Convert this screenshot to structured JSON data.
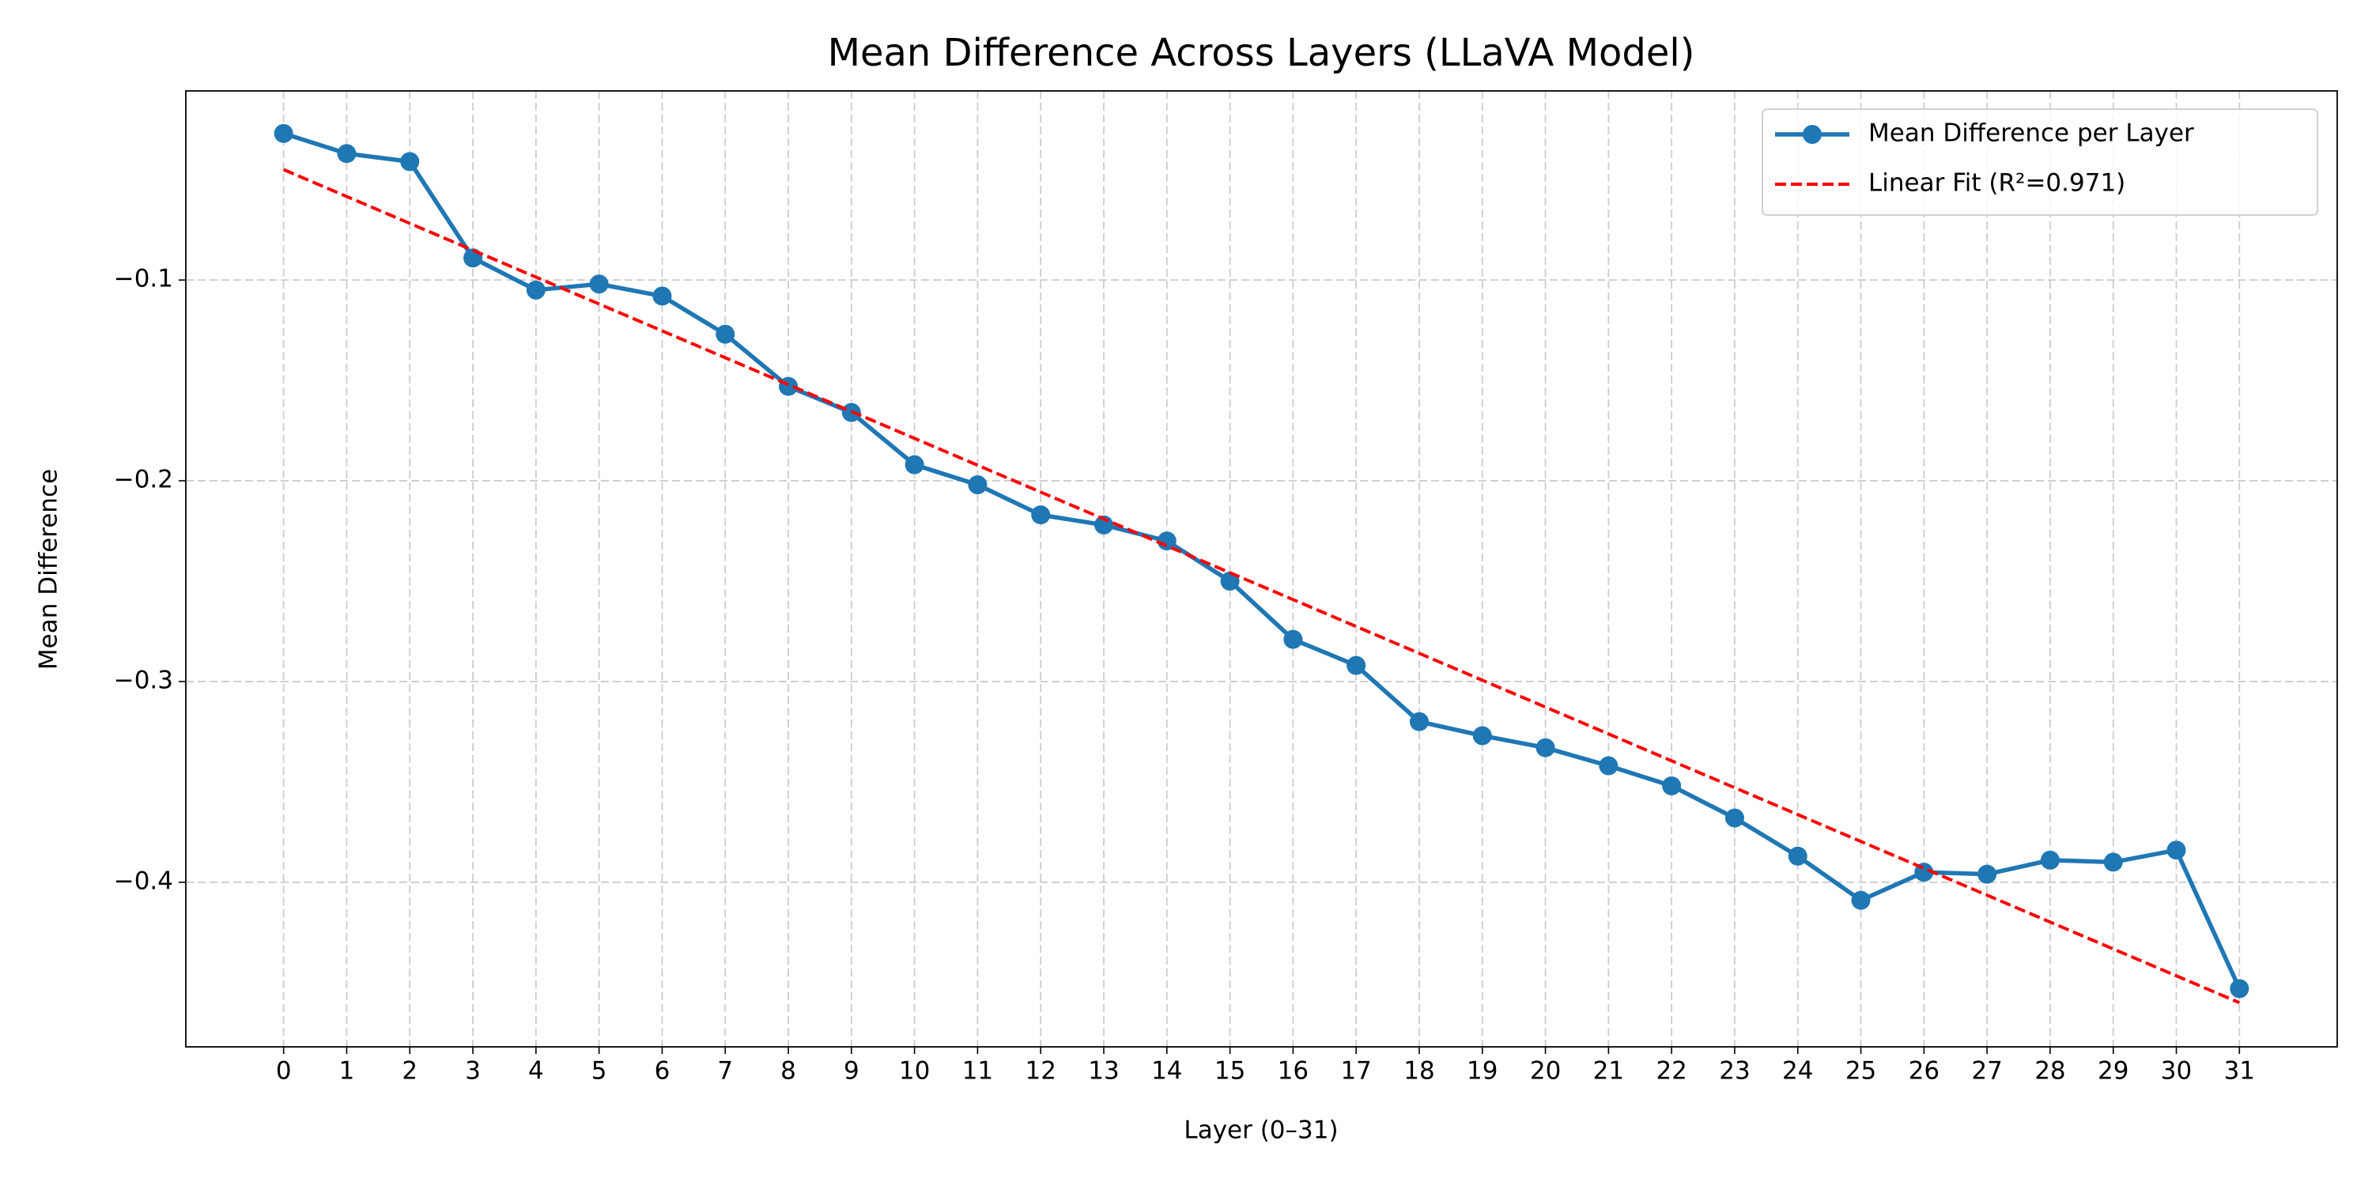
{
  "chart_data": {
    "type": "line",
    "title": "Mean Difference Across Layers (LLaVA Model)",
    "x_label": "Layer (0–31)",
    "y_label": "Mean Difference",
    "x": [
      0,
      1,
      2,
      3,
      4,
      5,
      6,
      7,
      8,
      9,
      10,
      11,
      12,
      13,
      14,
      15,
      16,
      17,
      18,
      19,
      20,
      21,
      22,
      23,
      24,
      25,
      26,
      27,
      28,
      29,
      30,
      31
    ],
    "series": [
      {
        "name": "Mean Difference per Layer",
        "color": "#1f77b4",
        "style": "solid-marker",
        "values": [
          -0.027,
          -0.037,
          -0.041,
          -0.089,
          -0.105,
          -0.102,
          -0.108,
          -0.127,
          -0.153,
          -0.166,
          -0.192,
          -0.202,
          -0.217,
          -0.222,
          -0.23,
          -0.25,
          -0.279,
          -0.292,
          -0.32,
          -0.327,
          -0.333,
          -0.342,
          -0.352,
          -0.368,
          -0.387,
          -0.409,
          -0.395,
          -0.396,
          -0.389,
          -0.39,
          -0.384,
          -0.453
        ]
      },
      {
        "name": "Linear Fit (R²=0.971)",
        "color": "#ff0000",
        "style": "dashed",
        "x": [
          0,
          31
        ],
        "values": [
          -0.045,
          -0.46
        ]
      }
    ],
    "xlim": [
      -1.55,
      32.55
    ],
    "ylim": [
      -0.482,
      -0.0058
    ],
    "xticks": [
      0,
      1,
      2,
      3,
      4,
      5,
      6,
      7,
      8,
      9,
      10,
      11,
      12,
      13,
      14,
      15,
      16,
      17,
      18,
      19,
      20,
      21,
      22,
      23,
      24,
      25,
      26,
      27,
      28,
      29,
      30,
      31
    ],
    "yticks": [
      {
        "value": -0.1,
        "label": "−0.1"
      },
      {
        "value": -0.2,
        "label": "−0.2"
      },
      {
        "value": -0.3,
        "label": "−0.3"
      },
      {
        "value": -0.4,
        "label": "−0.4"
      }
    ],
    "grid": true,
    "legend": "upper right"
  }
}
